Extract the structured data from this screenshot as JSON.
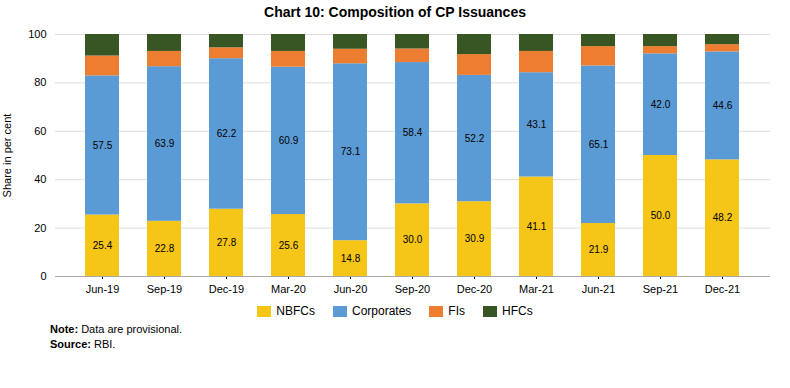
{
  "chart_data": {
    "type": "bar",
    "stacked": true,
    "title": "Chart 10: Composition of CP Issuances",
    "ylabel": "Share in per cent",
    "categories": [
      "Jun-19",
      "Sep-19",
      "Dec-19",
      "Mar-20",
      "Jun-20",
      "Sep-20",
      "Dec-20",
      "Mar-21",
      "Jun-21",
      "Sep-21",
      "Dec-21"
    ],
    "series": [
      {
        "name": "NBFCs",
        "color": "#F5C518",
        "data_labels": true,
        "values": [
          25.4,
          22.8,
          27.8,
          25.6,
          14.8,
          30.0,
          30.9,
          41.1,
          21.9,
          50.0,
          48.2
        ],
        "value_labels": [
          "25.4",
          "22.8",
          "27.8",
          "25.6",
          "14.8",
          "30.0",
          "30.9",
          "41.1",
          "21.9",
          "50.0",
          "48.2"
        ]
      },
      {
        "name": "Corporates",
        "color": "#5B9BD5",
        "data_labels": true,
        "values": [
          57.5,
          63.9,
          62.2,
          60.9,
          73.1,
          58.4,
          52.2,
          43.1,
          65.1,
          42.0,
          44.6
        ],
        "value_labels": [
          "57.5",
          "63.9",
          "62.2",
          "60.9",
          "73.1",
          "58.4",
          "52.2",
          "43.1",
          "65.1",
          "42.0",
          "44.6"
        ]
      },
      {
        "name": "FIs",
        "color": "#ED7D31",
        "values": [
          8.2,
          6.3,
          4.5,
          6.5,
          6.0,
          5.6,
          8.6,
          8.8,
          8.0,
          3.0,
          3.0
        ]
      },
      {
        "name": "HFCs",
        "color": "#375623",
        "values": [
          8.9,
          7.0,
          5.5,
          7.0,
          6.1,
          6.0,
          8.3,
          7.0,
          5.0,
          5.0,
          4.2
        ]
      }
    ],
    "ylim": [
      0,
      100
    ],
    "yticks": [
      0,
      20,
      40,
      60,
      80,
      100
    ],
    "grid": true,
    "legend": "bottom",
    "notes": [
      {
        "label": "Note:",
        "text": "Data are provisional."
      },
      {
        "label": "Source:",
        "text": "RBI."
      }
    ]
  }
}
